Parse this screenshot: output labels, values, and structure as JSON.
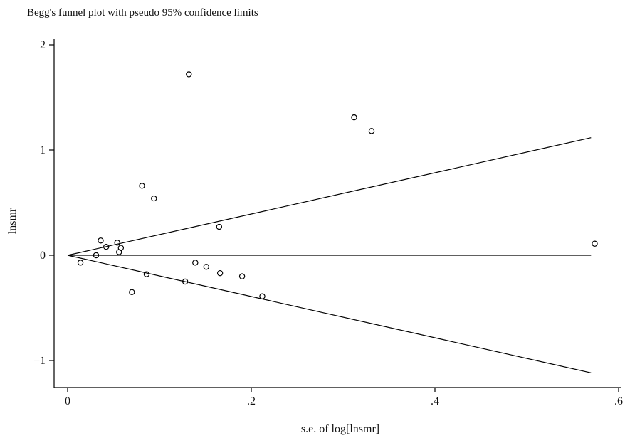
{
  "chart_data": {
    "type": "scatter",
    "title": "Begg's funnel plot with pseudo 95% confidence limits",
    "xlabel": "s.e. of log[lnsmr]",
    "ylabel": "lnsmr",
    "xlim": [
      0,
      0.6
    ],
    "ylim": [
      -1.25,
      2.1
    ],
    "x_ticks": [
      0,
      0.2,
      0.4,
      0.6
    ],
    "x_tick_labels": [
      "0",
      ".2",
      ".4",
      ".6"
    ],
    "y_ticks": [
      -1,
      0,
      1,
      2
    ],
    "y_tick_labels": [
      "−1",
      "0",
      "1",
      "2"
    ],
    "grid": false,
    "pooled_estimate": 0,
    "pseudo_ci_z": 1.96,
    "line_x_max": 0.57,
    "points": [
      {
        "x": 0.014,
        "y": -0.07
      },
      {
        "x": 0.031,
        "y": 0.0
      },
      {
        "x": 0.036,
        "y": 0.14
      },
      {
        "x": 0.042,
        "y": 0.08
      },
      {
        "x": 0.054,
        "y": 0.12
      },
      {
        "x": 0.056,
        "y": 0.03
      },
      {
        "x": 0.058,
        "y": 0.07
      },
      {
        "x": 0.07,
        "y": -0.35
      },
      {
        "x": 0.081,
        "y": 0.66
      },
      {
        "x": 0.086,
        "y": -0.18
      },
      {
        "x": 0.094,
        "y": 0.54
      },
      {
        "x": 0.128,
        "y": -0.25
      },
      {
        "x": 0.132,
        "y": 1.72
      },
      {
        "x": 0.139,
        "y": -0.07
      },
      {
        "x": 0.151,
        "y": -0.11
      },
      {
        "x": 0.165,
        "y": 0.27
      },
      {
        "x": 0.166,
        "y": -0.17
      },
      {
        "x": 0.19,
        "y": -0.2
      },
      {
        "x": 0.212,
        "y": -0.39
      },
      {
        "x": 0.312,
        "y": 1.31
      },
      {
        "x": 0.331,
        "y": 1.18
      },
      {
        "x": 0.574,
        "y": 0.11
      }
    ]
  }
}
